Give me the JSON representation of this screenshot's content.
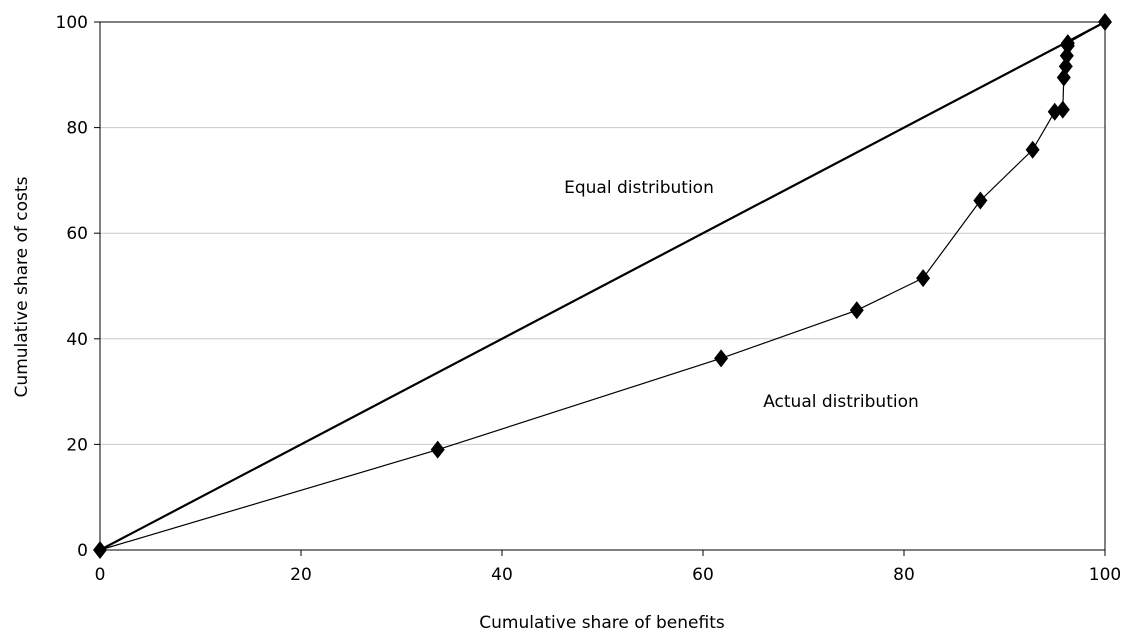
{
  "chart_data": {
    "type": "line",
    "xlabel": "Cumulative share of benefits",
    "ylabel": "Cumulative share of costs",
    "xlim": [
      0,
      100
    ],
    "ylim": [
      0,
      100
    ],
    "x_ticks": [
      "0",
      "20",
      "40",
      "60",
      "80",
      "100"
    ],
    "y_ticks": [
      "0",
      "20",
      "40",
      "60",
      "80",
      "100"
    ],
    "grid": "horizontal",
    "legend": "none",
    "annotations": [
      "Equal distribution",
      "Actual distribution"
    ],
    "series": [
      {
        "line_color": "#000000",
        "marker": "none",
        "x": [
          0,
          100
        ],
        "y": [
          0,
          100
        ]
      },
      {
        "line_color": "#000000",
        "marker": "diamond",
        "x": [
          0,
          33.6,
          61.8,
          75.3,
          81.9,
          87.6,
          92.8,
          95.0,
          95.8,
          95.9,
          96.1,
          96.2,
          96.3,
          96.3,
          100
        ],
        "y": [
          0,
          19,
          36.3,
          45.4,
          51.5,
          66.2,
          75.8,
          83.0,
          83.4,
          89.5,
          91.6,
          93.6,
          95.5,
          96.0,
          100
        ]
      }
    ]
  }
}
